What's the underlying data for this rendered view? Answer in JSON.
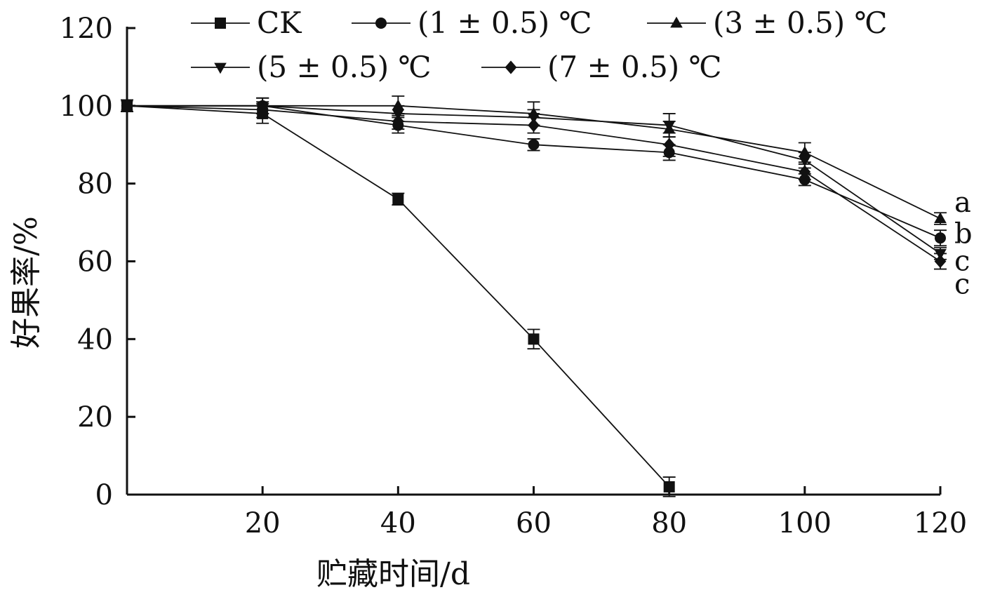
{
  "chart_data": {
    "type": "line",
    "xlabel": "贮藏时间/d",
    "ylabel": "好果率/%",
    "xlim": [
      0,
      120
    ],
    "ylim": [
      0,
      120
    ],
    "x_ticks": [
      20,
      40,
      60,
      80,
      100,
      120
    ],
    "y_ticks": [
      0,
      20,
      40,
      60,
      80,
      100,
      120
    ],
    "grid": false,
    "legend_position": "top",
    "series": [
      {
        "name": "CK",
        "marker": "square",
        "x": [
          0,
          20,
          40,
          60,
          80
        ],
        "values": [
          100,
          98,
          76,
          40,
          2
        ],
        "errors": [
          1.5,
          2.5,
          1.5,
          2.5,
          2.5
        ]
      },
      {
        "name": "(1 ± 0.5) ℃",
        "marker": "circle",
        "x": [
          0,
          20,
          40,
          60,
          80,
          100,
          120
        ],
        "values": [
          100,
          100,
          95,
          90,
          88,
          81,
          66
        ],
        "errors": [
          1.5,
          2.0,
          2.0,
          1.5,
          2.0,
          1.5,
          2.0
        ]
      },
      {
        "name": "(3 ± 0.5) ℃",
        "marker": "triangle-up",
        "x": [
          0,
          20,
          40,
          60,
          80,
          100,
          120
        ],
        "values": [
          100,
          100,
          100,
          98,
          94,
          88,
          71
        ],
        "errors": [
          1.5,
          2.0,
          2.5,
          3.0,
          2.0,
          2.5,
          1.5
        ]
      },
      {
        "name": "(5 ± 0.5) ℃",
        "marker": "triangle-down",
        "x": [
          0,
          20,
          40,
          60,
          80,
          100,
          120
        ],
        "values": [
          100,
          100,
          98,
          97,
          95,
          86,
          62
        ],
        "errors": [
          1.5,
          2.0,
          2.0,
          2.0,
          3.0,
          2.0,
          1.5
        ]
      },
      {
        "name": "(7 ± 0.5) ℃",
        "marker": "diamond",
        "x": [
          0,
          20,
          40,
          60,
          80,
          100,
          120
        ],
        "values": [
          100,
          99,
          96,
          95,
          90,
          83,
          60
        ],
        "errors": [
          1.5,
          2.0,
          2.0,
          2.0,
          3.0,
          2.0,
          2.0
        ]
      }
    ],
    "annotations": [
      {
        "text": "a",
        "x": 120,
        "y": 74.5
      },
      {
        "text": "b",
        "x": 120,
        "y": 66.5
      },
      {
        "text": "c",
        "x": 120,
        "y": 59.5
      },
      {
        "text": "c",
        "x": 120,
        "y": 53.5
      }
    ]
  }
}
